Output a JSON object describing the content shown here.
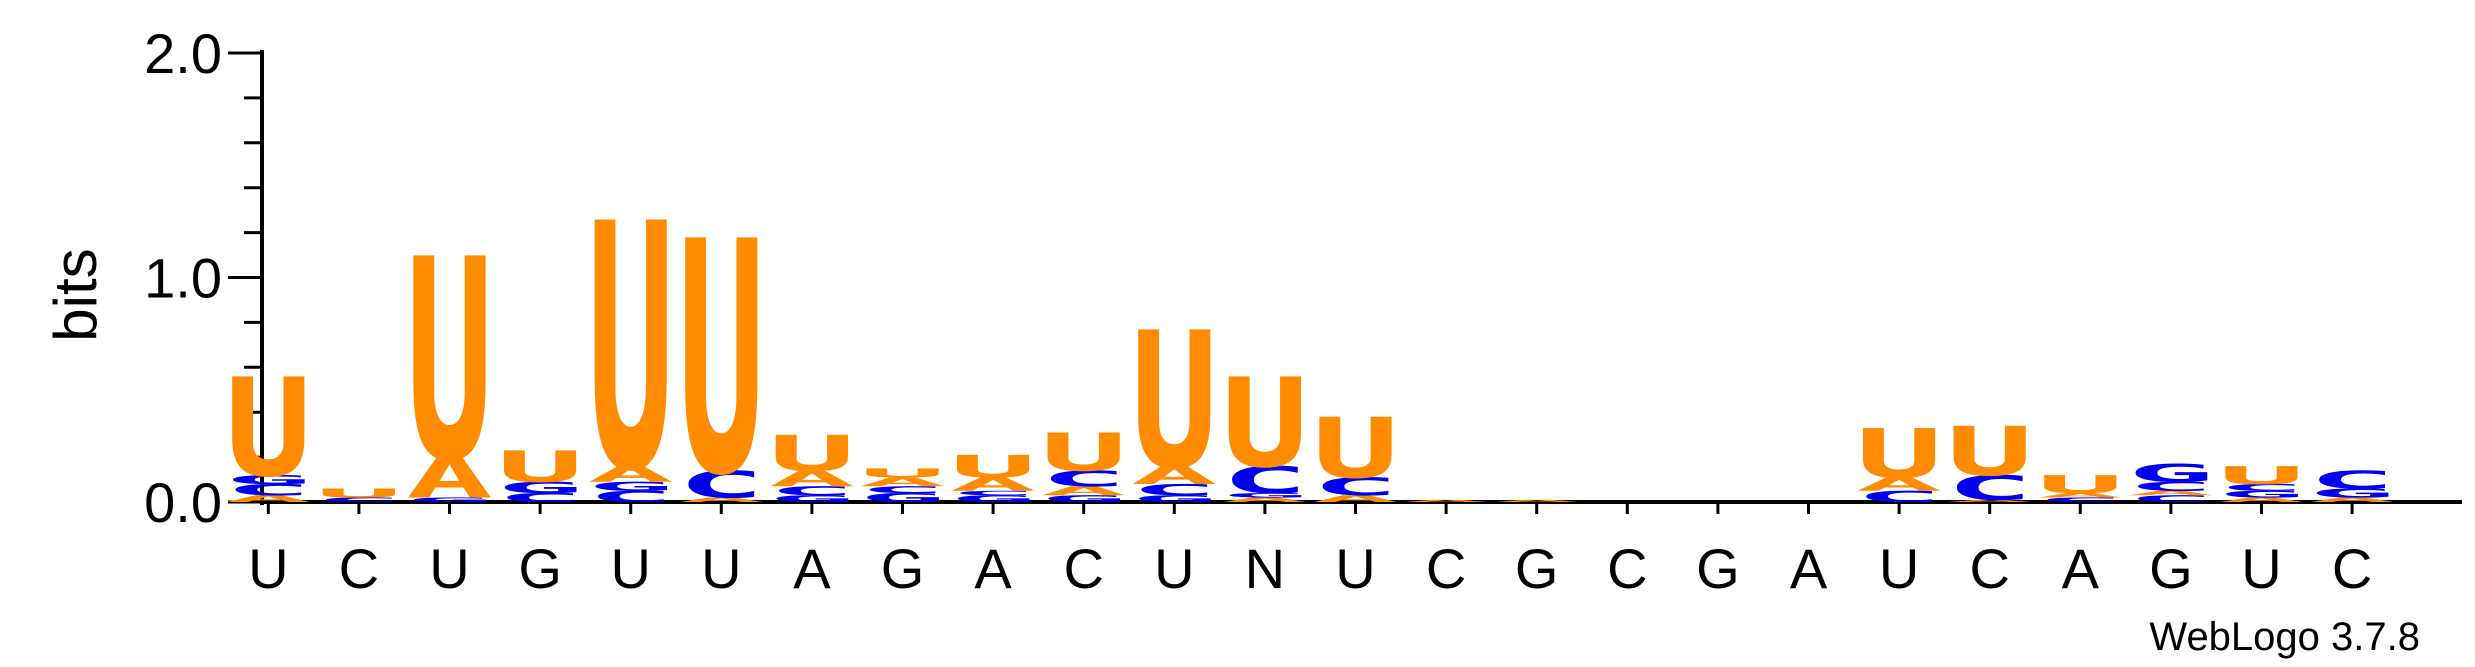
{
  "chart_data": {
    "type": "sequence-logo",
    "ylabel": "bits",
    "ylim": [
      0,
      2.0
    ],
    "yticks": [
      "0.0",
      "1.0",
      "2.0"
    ],
    "colors": {
      "U": "#ff8c00",
      "A": "#ff8c00",
      "C": "#0000ee",
      "G": "#0000ee"
    },
    "positions": [
      {
        "label": "U",
        "stack": [
          [
            "A",
            0.03
          ],
          [
            "C",
            0.05
          ],
          [
            "G",
            0.04
          ],
          [
            "U",
            0.44
          ]
        ]
      },
      {
        "label": "C",
        "stack": [
          [
            "C",
            0.02
          ],
          [
            "U",
            0.04
          ]
        ]
      },
      {
        "label": "U",
        "stack": [
          [
            "G",
            0.02
          ],
          [
            "A",
            0.18
          ],
          [
            "U",
            0.9
          ]
        ]
      },
      {
        "label": "G",
        "stack": [
          [
            "C",
            0.04
          ],
          [
            "G",
            0.05
          ],
          [
            "U",
            0.14
          ]
        ]
      },
      {
        "label": "U",
        "stack": [
          [
            "C",
            0.05
          ],
          [
            "G",
            0.04
          ],
          [
            "A",
            0.07
          ],
          [
            "U",
            1.1
          ]
        ]
      },
      {
        "label": "U",
        "stack": [
          [
            "A",
            0.02
          ],
          [
            "C",
            0.12
          ],
          [
            "U",
            1.04
          ]
        ]
      },
      {
        "label": "A",
        "stack": [
          [
            "G",
            0.03
          ],
          [
            "C",
            0.04
          ],
          [
            "A",
            0.07
          ],
          [
            "U",
            0.16
          ]
        ]
      },
      {
        "label": "G",
        "stack": [
          [
            "G",
            0.04
          ],
          [
            "C",
            0.03
          ],
          [
            "A",
            0.04
          ],
          [
            "U",
            0.04
          ]
        ]
      },
      {
        "label": "A",
        "stack": [
          [
            "G",
            0.03
          ],
          [
            "C",
            0.02
          ],
          [
            "A",
            0.06
          ],
          [
            "U",
            0.1
          ]
        ]
      },
      {
        "label": "C",
        "stack": [
          [
            "G",
            0.03
          ],
          [
            "A",
            0.04
          ],
          [
            "C",
            0.07
          ],
          [
            "U",
            0.17
          ]
        ]
      },
      {
        "label": "U",
        "stack": [
          [
            "G",
            0.03
          ],
          [
            "C",
            0.05
          ],
          [
            "A",
            0.08
          ],
          [
            "U",
            0.61
          ]
        ]
      },
      {
        "label": "N",
        "stack": [
          [
            "A",
            0.02
          ],
          [
            "G",
            0.02
          ],
          [
            "C",
            0.12
          ],
          [
            "U",
            0.4
          ]
        ]
      },
      {
        "label": "U",
        "stack": [
          [
            "A",
            0.03
          ],
          [
            "C",
            0.08
          ],
          [
            "U",
            0.27
          ]
        ]
      },
      {
        "label": "C",
        "stack": [
          [
            "A",
            0.01
          ]
        ]
      },
      {
        "label": "G",
        "stack": [
          [
            "A",
            0.01
          ]
        ]
      },
      {
        "label": "C",
        "stack": []
      },
      {
        "label": "G",
        "stack": []
      },
      {
        "label": "A",
        "stack": []
      },
      {
        "label": "U",
        "stack": [
          [
            "C",
            0.05
          ],
          [
            "A",
            0.06
          ],
          [
            "U",
            0.22
          ]
        ]
      },
      {
        "label": "C",
        "stack": [
          [
            "A",
            0.01
          ],
          [
            "C",
            0.11
          ],
          [
            "U",
            0.22
          ]
        ]
      },
      {
        "label": "A",
        "stack": [
          [
            "C",
            0.02
          ],
          [
            "A",
            0.02
          ],
          [
            "U",
            0.08
          ]
        ]
      },
      {
        "label": "G",
        "stack": [
          [
            "C",
            0.03
          ],
          [
            "A",
            0.02
          ],
          [
            "C",
            0.04
          ],
          [
            "G",
            0.08
          ]
        ]
      },
      {
        "label": "U",
        "stack": [
          [
            "A",
            0.02
          ],
          [
            "G",
            0.03
          ],
          [
            "C",
            0.03
          ],
          [
            "U",
            0.08
          ]
        ]
      },
      {
        "label": "C",
        "stack": [
          [
            "A",
            0.02
          ],
          [
            "G",
            0.04
          ],
          [
            "C",
            0.08
          ]
        ]
      }
    ],
    "credit": "WebLogo 3.7.8"
  }
}
